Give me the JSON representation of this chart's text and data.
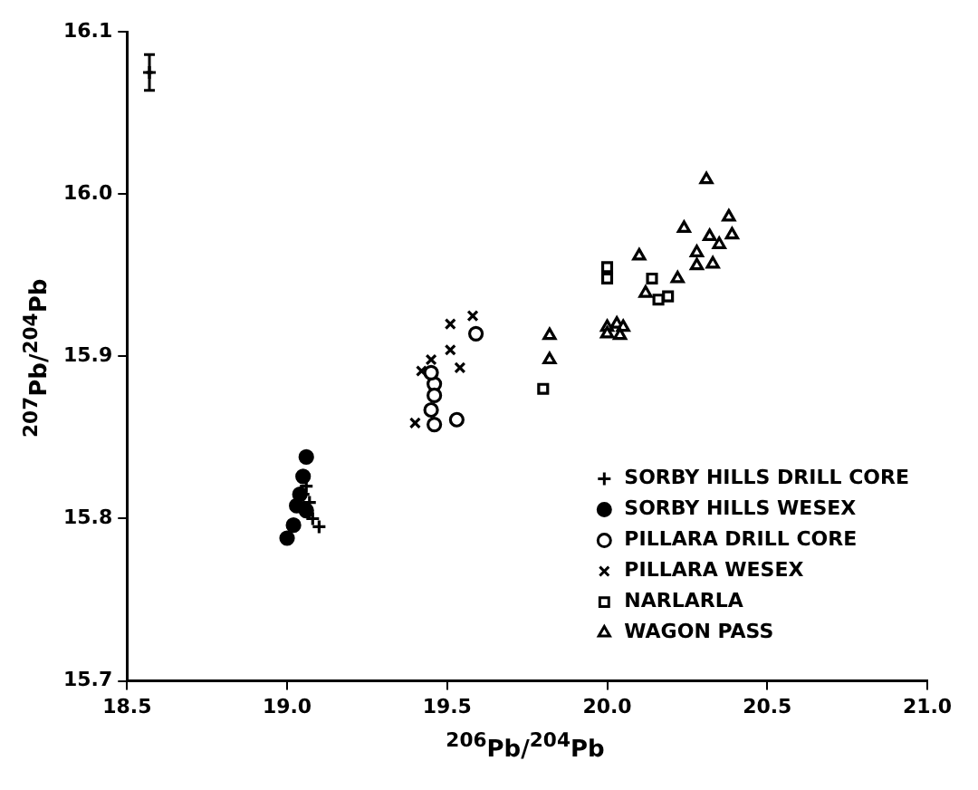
{
  "chart_data": {
    "type": "scatter",
    "xlabel": "$^{206}$Pb/$^{204}$Pb",
    "ylabel": "$^{207}$Pb/$^{204}$Pb",
    "xlim": [
      18.5,
      21.0
    ],
    "xticks": [
      18.5,
      {
        "value": 19,
        "label": "19.0"
      },
      19.5,
      {
        "value": 20,
        "label": "20.0"
      },
      20.5,
      {
        "value": 21,
        "label": "21.0"
      }
    ],
    "ylim": [
      15.7,
      16.1
    ],
    "yticks": [
      15.7,
      15.8,
      15.9,
      {
        "value": 16,
        "label": "16.0"
      },
      16.1
    ],
    "grid": false,
    "legend": "bottom right",
    "series": [
      {
        "name": "SORBY HILLS DRILL CORE",
        "color": "#000000",
        "marker": "cross",
        "x": [
          19.05,
          19.07,
          19.08,
          19.1,
          19.06
        ],
        "values": [
          15.815,
          15.81,
          15.8,
          15.795,
          15.82
        ]
      },
      {
        "name": "SORBY HILLS WESEX",
        "color": "#000000",
        "marker": "circle",
        "x": [
          19.06,
          19.05,
          19.04,
          19.03,
          19.06,
          19.02,
          19.0
        ],
        "values": [
          15.838,
          15.826,
          15.815,
          15.808,
          15.805,
          15.796,
          15.788
        ]
      },
      {
        "name": "PILLARA DRILL CORE",
        "color": "#000000",
        "marker": "circle",
        "x": [
          19.59,
          19.53,
          19.46,
          19.46,
          19.45,
          19.46,
          19.45
        ],
        "values": [
          15.914,
          15.861,
          15.883,
          15.876,
          15.867,
          15.858,
          15.89
        ]
      },
      {
        "name": "PILLARA WESEX",
        "color": "#000000",
        "marker": "x",
        "x": [
          19.51,
          19.58,
          19.54,
          19.51,
          19.4,
          19.42,
          19.45
        ],
        "values": [
          15.92,
          15.925,
          15.893,
          15.904,
          15.859,
          15.891,
          15.898
        ]
      },
      {
        "name": "NARLARLA",
        "color": "#000000",
        "marker": "square",
        "x": [
          19.8,
          20.0,
          20.0,
          20.14,
          20.16,
          20.19
        ],
        "values": [
          15.88,
          15.955,
          15.948,
          15.948,
          15.935,
          15.937
        ]
      },
      {
        "name": "WAGON PASS",
        "color": "#000000",
        "marker": "triangle",
        "x": [
          19.82,
          19.82,
          20.0,
          20.03,
          20.05,
          20.0,
          20.04,
          20.12,
          20.22,
          20.31,
          20.38,
          20.39,
          20.24,
          20.32,
          20.35,
          20.28,
          20.28,
          20.33,
          20.1
        ],
        "values": [
          15.913,
          15.898,
          15.918,
          15.92,
          15.918,
          15.914,
          15.913,
          15.939,
          15.948,
          16.009,
          15.986,
          15.975,
          15.979,
          15.974,
          15.969,
          15.964,
          15.956,
          15.957,
          15.962
        ]
      },
      {
        "color": "#000000",
        "marker": "cross",
        "x": [
          18.57
        ],
        "values": [
          16.075
        ],
        "errors": [
          0.011
        ],
        "xerrors": [
          0.01
        ]
      }
    ]
  }
}
